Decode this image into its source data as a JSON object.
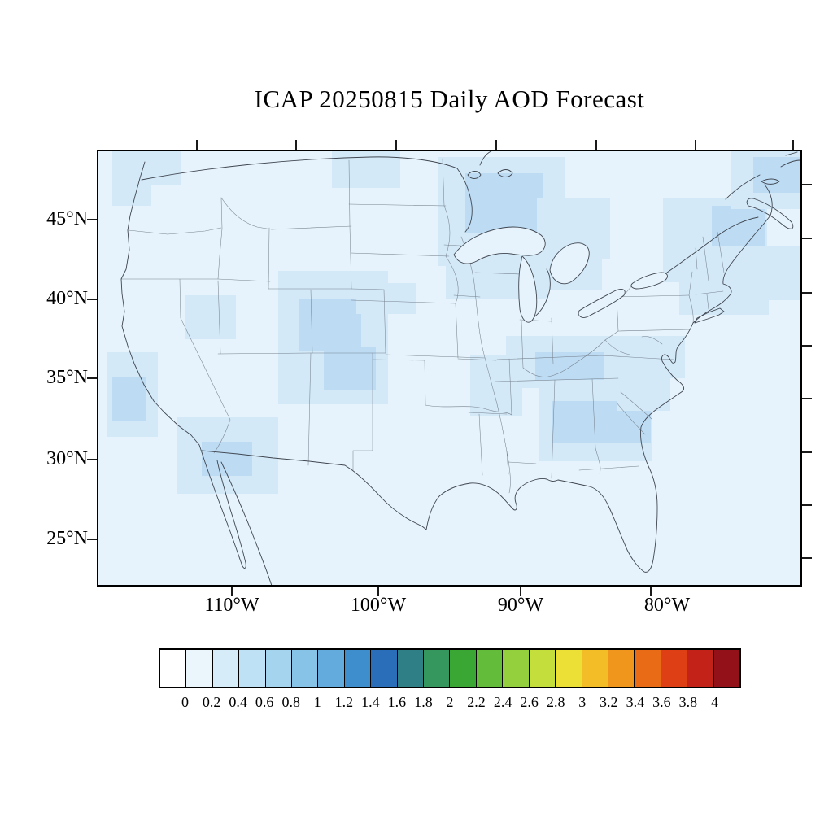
{
  "title": "ICAP 20250815 Daily AOD Forecast",
  "map": {
    "lat_labels": [
      "45°N",
      "40°N",
      "35°N",
      "30°N",
      "25°N"
    ],
    "lon_labels": [
      "110°W",
      "100°W",
      "90°W",
      "80°W"
    ],
    "background_color": "#e6f3fc",
    "aod_light_color": "#d3e9f8",
    "aod_medium_color": "#bddcf4"
  },
  "colorbar": {
    "tick_labels": [
      "0",
      "0.2",
      "0.4",
      "0.6",
      "0.8",
      "1",
      "1.2",
      "1.4",
      "1.6",
      "1.8",
      "2",
      "2.2",
      "2.4",
      "2.6",
      "2.8",
      "3",
      "3.2",
      "3.4",
      "3.6",
      "3.8",
      "4"
    ],
    "colors": [
      "#ffffff",
      "#eaf5fc",
      "#d6ecf9",
      "#bfe1f5",
      "#a5d4ef",
      "#86c3e7",
      "#62abdc",
      "#3e8ecd",
      "#2a6db8",
      "#2f7f87",
      "#35975d",
      "#3aa634",
      "#63bc3a",
      "#94cf3d",
      "#c4df3b",
      "#ecdf35",
      "#f3bd27",
      "#f0961d",
      "#ea6b15",
      "#df3f14",
      "#c22218",
      "#93121a"
    ]
  }
}
